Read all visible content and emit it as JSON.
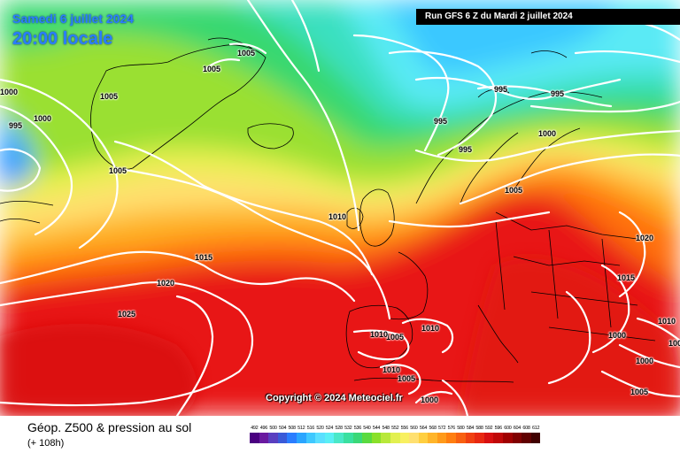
{
  "header": {
    "date": "Samedi 6 juillet 2024",
    "local_time": "20:00 locale",
    "run": "Run GFS 6 Z du Mardi 2 juillet 2024"
  },
  "copyright": "Copyright © 2024 Meteociel.fr",
  "footer": {
    "title": "Géop. Z500 & pression au sol",
    "lead": "(+ 108h)"
  },
  "legend_values": [
    "492",
    "496",
    "500",
    "504",
    "508",
    "512",
    "516",
    "520",
    "524",
    "528",
    "532",
    "536",
    "540",
    "544",
    "548",
    "552",
    "556",
    "560",
    "564",
    "568",
    "572",
    "576",
    "580",
    "584",
    "588",
    "592",
    "596",
    "600",
    "604",
    "608",
    "612"
  ],
  "legend_colors": [
    "#4a0080",
    "#6a1aa0",
    "#5a3fc0",
    "#3a5ad8",
    "#2a7dff",
    "#2aa5ff",
    "#3fc8ff",
    "#5adfff",
    "#5aeff5",
    "#4ae8c8",
    "#3ae0a0",
    "#3ad878",
    "#5ada40",
    "#8ae02a",
    "#b8e83a",
    "#e2f050",
    "#f8f060",
    "#ffe070",
    "#ffcf40",
    "#ffb52a",
    "#ff9a1a",
    "#ff7e10",
    "#f86010",
    "#f04010",
    "#e82810",
    "#d81010",
    "#c00808",
    "#a00000",
    "#800000",
    "#600000",
    "#400000"
  ],
  "isobar_labels": [
    "1005",
    "1005",
    "1005",
    "1000",
    "1000",
    "995",
    "1005",
    "995",
    "995",
    "995",
    "995",
    "1000",
    "1005",
    "1010",
    "1015",
    "1020",
    "1025",
    "1020",
    "1015",
    "1010",
    "1005",
    "1010",
    "1000",
    "1010",
    "1005",
    "1010",
    "1000",
    "1005",
    "1000",
    "1000"
  ]
}
